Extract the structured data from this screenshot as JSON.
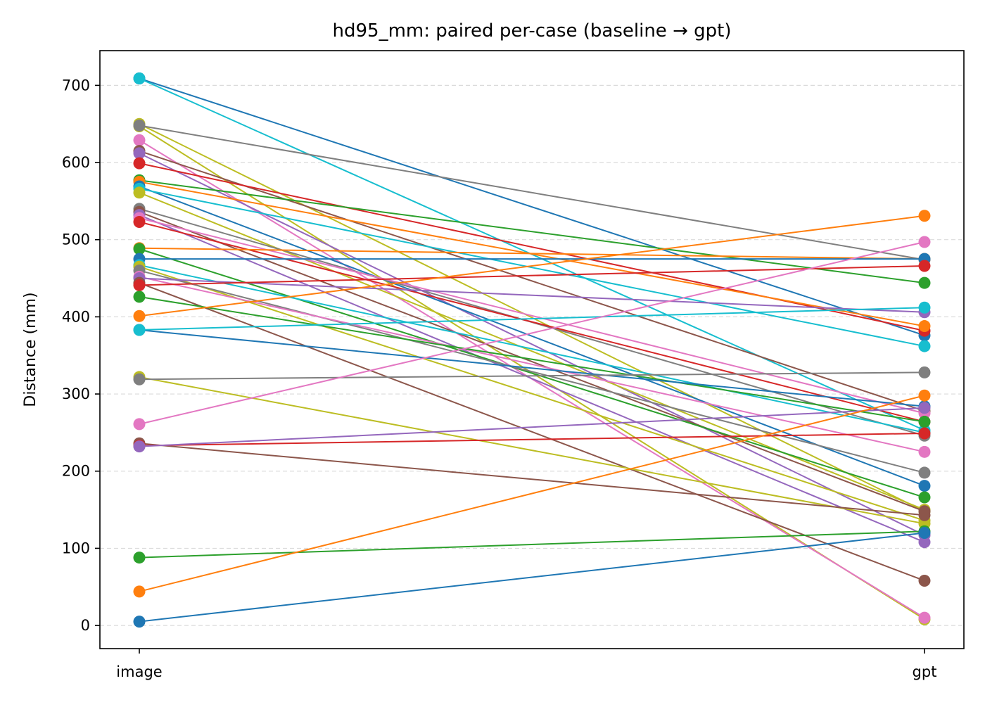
{
  "chart_data": {
    "type": "line",
    "title": "hd95_mm: paired per-case (baseline → gpt)",
    "xlabel": "",
    "ylabel": "Distance (mm)",
    "categories": [
      "image",
      "gpt"
    ],
    "ylim": [
      -30,
      745
    ],
    "yticks": [
      0,
      100,
      200,
      300,
      400,
      500,
      600,
      700
    ],
    "grid": "y-dashed",
    "legend": "none",
    "palette": [
      "#1f77b4",
      "#ff7f0e",
      "#2ca02c",
      "#d62728",
      "#9467bd",
      "#8c564b",
      "#e377c2",
      "#7f7f7f",
      "#bcbd22",
      "#17becf"
    ],
    "series": [
      {
        "values": [
          709,
          376
        ],
        "color": "#1f77b4"
      },
      {
        "values": [
          709,
          253
        ],
        "color": "#17becf"
      },
      {
        "values": [
          650,
          148
        ],
        "color": "#bcbd22"
      },
      {
        "values": [
          647,
          8
        ],
        "color": "#bcbd22"
      },
      {
        "values": [
          648,
          474
        ],
        "color": "#7f7f7f"
      },
      {
        "values": [
          629,
          10
        ],
        "color": "#e377c2"
      },
      {
        "values": [
          615,
          278
        ],
        "color": "#8c564b"
      },
      {
        "values": [
          612,
          117
        ],
        "color": "#9467bd"
      },
      {
        "values": [
          599,
          382
        ],
        "color": "#d62728"
      },
      {
        "values": [
          577,
          444
        ],
        "color": "#2ca02c"
      },
      {
        "values": [
          575,
          388
        ],
        "color": "#ff7f0e"
      },
      {
        "values": [
          569,
          181
        ],
        "color": "#1f77b4"
      },
      {
        "values": [
          566,
          362
        ],
        "color": "#17becf"
      },
      {
        "values": [
          561,
          150
        ],
        "color": "#bcbd22"
      },
      {
        "values": [
          540,
          246
        ],
        "color": "#7f7f7f"
      },
      {
        "values": [
          536,
          148
        ],
        "color": "#8c564b"
      },
      {
        "values": [
          532,
          108
        ],
        "color": "#9467bd"
      },
      {
        "values": [
          528,
          275
        ],
        "color": "#e377c2"
      },
      {
        "values": [
          523,
          264
        ],
        "color": "#d62728"
      },
      {
        "values": [
          489,
          475
        ],
        "color": "#ff7f0e"
      },
      {
        "values": [
          488,
          166
        ],
        "color": "#2ca02c"
      },
      {
        "values": [
          475,
          475
        ],
        "color": "#1f77b4"
      },
      {
        "values": [
          467,
          250
        ],
        "color": "#17becf"
      },
      {
        "values": [
          465,
          136
        ],
        "color": "#bcbd22"
      },
      {
        "values": [
          460,
          198
        ],
        "color": "#7f7f7f"
      },
      {
        "values": [
          452,
          225
        ],
        "color": "#e377c2"
      },
      {
        "values": [
          450,
          406
        ],
        "color": "#9467bd"
      },
      {
        "values": [
          444,
          58
        ],
        "color": "#8c564b"
      },
      {
        "values": [
          441,
          466
        ],
        "color": "#d62728"
      },
      {
        "values": [
          426,
          264
        ],
        "color": "#2ca02c"
      },
      {
        "values": [
          401,
          531
        ],
        "color": "#ff7f0e"
      },
      {
        "values": [
          383,
          284
        ],
        "color": "#1f77b4"
      },
      {
        "values": [
          383,
          412
        ],
        "color": "#17becf"
      },
      {
        "values": [
          322,
          132
        ],
        "color": "#bcbd22"
      },
      {
        "values": [
          319,
          328
        ],
        "color": "#7f7f7f"
      },
      {
        "values": [
          261,
          497
        ],
        "color": "#e377c2"
      },
      {
        "values": [
          236,
          143
        ],
        "color": "#8c564b"
      },
      {
        "values": [
          233,
          249
        ],
        "color": "#d62728"
      },
      {
        "values": [
          232,
          282
        ],
        "color": "#9467bd"
      },
      {
        "values": [
          88,
          122
        ],
        "color": "#2ca02c"
      },
      {
        "values": [
          44,
          298
        ],
        "color": "#ff7f0e"
      },
      {
        "values": [
          5,
          120
        ],
        "color": "#1f77b4"
      }
    ]
  }
}
